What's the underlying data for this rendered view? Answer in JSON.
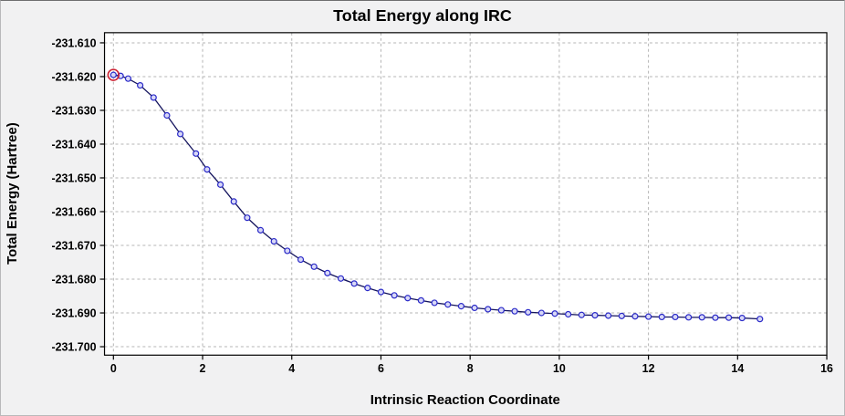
{
  "window": {
    "background": "#f1f1f2"
  },
  "chart_data": {
    "type": "line",
    "title": "Total Energy along IRC",
    "xlabel": "Intrinsic Reaction Coordinate",
    "ylabel": "Total Energy (Hartree)",
    "xlim": [
      -0.2,
      16
    ],
    "ylim": [
      -231.7025,
      -231.607
    ],
    "grid": true,
    "legend": false,
    "xticks": [
      {
        "value": 0,
        "label": "0"
      },
      {
        "value": 2,
        "label": "2"
      },
      {
        "value": 4,
        "label": "4"
      },
      {
        "value": 6,
        "label": "6"
      },
      {
        "value": 8,
        "label": "8"
      },
      {
        "value": 10,
        "label": "10"
      },
      {
        "value": 12,
        "label": "12"
      },
      {
        "value": 14,
        "label": "14"
      },
      {
        "value": 16,
        "label": "16"
      }
    ],
    "yticks": [
      {
        "value": -231.61,
        "label": "-231.610"
      },
      {
        "value": -231.62,
        "label": "-231.620"
      },
      {
        "value": -231.63,
        "label": "-231.630"
      },
      {
        "value": -231.64,
        "label": "-231.640"
      },
      {
        "value": -231.65,
        "label": "-231.650"
      },
      {
        "value": -231.66,
        "label": "-231.660"
      },
      {
        "value": -231.67,
        "label": "-231.670"
      },
      {
        "value": -231.68,
        "label": "-231.680"
      },
      {
        "value": -231.69,
        "label": "-231.690"
      },
      {
        "value": -231.7,
        "label": "-231.700"
      }
    ],
    "series": [
      {
        "name": "Total Energy",
        "x": [
          0,
          0.16,
          0.33,
          0.6,
          0.9,
          1.2,
          1.5,
          1.85,
          2.1,
          2.4,
          2.7,
          3.0,
          3.3,
          3.6,
          3.9,
          4.2,
          4.5,
          4.8,
          5.1,
          5.4,
          5.7,
          6.0,
          6.3,
          6.6,
          6.9,
          7.2,
          7.5,
          7.8,
          8.1,
          8.4,
          8.7,
          9.0,
          9.3,
          9.6,
          9.9,
          10.2,
          10.5,
          10.8,
          11.1,
          11.4,
          11.7,
          12.0,
          12.3,
          12.6,
          12.9,
          13.2,
          13.5,
          13.8,
          14.1,
          14.5
        ],
        "y": [
          -231.6195,
          -231.6198,
          -231.6206,
          -231.6226,
          -231.6262,
          -231.6315,
          -231.637,
          -231.6428,
          -231.6475,
          -231.652,
          -231.657,
          -231.6618,
          -231.6655,
          -231.6688,
          -231.6716,
          -231.6742,
          -231.6763,
          -231.6782,
          -231.6798,
          -231.6813,
          -231.6826,
          -231.6838,
          -231.6848,
          -231.6856,
          -231.6863,
          -231.687,
          -231.6875,
          -231.688,
          -231.6885,
          -231.6889,
          -231.6892,
          -231.6895,
          -231.6898,
          -231.69,
          -231.6902,
          -231.6904,
          -231.6906,
          -231.6907,
          -231.6908,
          -231.6909,
          -231.691,
          -231.6911,
          -231.6912,
          -231.6912,
          -231.6913,
          -231.6913,
          -231.6914,
          -231.6914,
          -231.6915,
          -231.6918
        ]
      }
    ],
    "highlight": {
      "index": 0,
      "color": "#cc2233"
    },
    "colors": {
      "line": "#14145e",
      "marker_stroke": "#2929c8",
      "marker_fill": "#d8d8f6",
      "grid": "#b4b4b4",
      "frame": "#000000",
      "plot_bg": "#ffffff"
    }
  }
}
